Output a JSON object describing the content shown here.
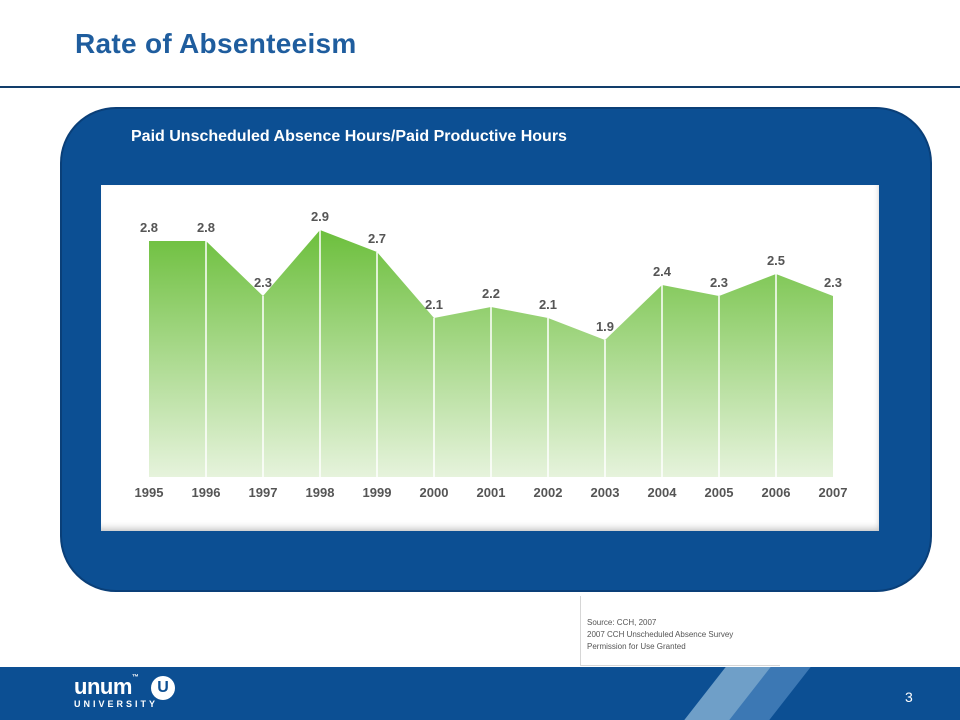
{
  "slide": {
    "title": "Rate of Absenteeism",
    "page_number": "3"
  },
  "chart_data": {
    "type": "area",
    "title": "Paid Unscheduled Absence Hours/Paid Productive Hours",
    "categories": [
      "1995",
      "1996",
      "1997",
      "1998",
      "1999",
      "2000",
      "2001",
      "2002",
      "2003",
      "2004",
      "2005",
      "2006",
      "2007"
    ],
    "values": [
      2.8,
      2.8,
      2.3,
      2.9,
      2.7,
      2.1,
      2.2,
      2.1,
      1.9,
      2.4,
      2.3,
      2.5,
      2.3
    ],
    "labels": [
      "2.8",
      "2.8",
      "2.3",
      "2.9",
      "2.7",
      "2.1",
      "2.2",
      "2.1",
      "1.9",
      "2.4",
      "2.3",
      "2.5",
      "2.3"
    ],
    "xlabel": "",
    "ylabel": "",
    "colors": {
      "top": "#6cbf3c",
      "bottom": "#e6f3dc",
      "separator": "#ffffff",
      "label": "#555555"
    },
    "grid": false
  },
  "source": {
    "lines": [
      "Source: CCH, 2007",
      "2007 CCH Unscheduled Absence Survey",
      "Permission for Use Granted"
    ]
  },
  "footer": {
    "brand_name": "unum",
    "brand_trademark": "™",
    "brand_sub": "UNIVERSITY",
    "brand_badge": "U",
    "colors": {
      "bar": "#0c4f93",
      "stripe_light": "#6f9fc8",
      "stripe_mid": "#3c78b4"
    }
  }
}
